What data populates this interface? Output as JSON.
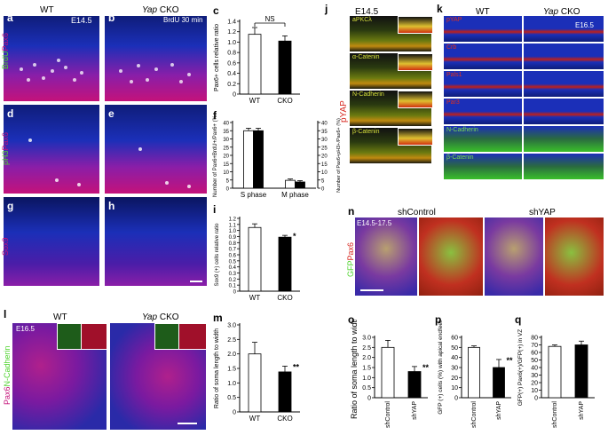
{
  "panels": {
    "a": {
      "letter": "a",
      "stage": "E14.5"
    },
    "b": {
      "letter": "b",
      "label": "BrdU 30 min"
    },
    "c": {
      "letter": "c",
      "ns": "NS"
    },
    "d": {
      "letter": "d"
    },
    "e": {
      "letter": "e"
    },
    "f": {
      "letter": "f"
    },
    "g": {
      "letter": "g"
    },
    "h": {
      "letter": "h"
    },
    "i": {
      "letter": "i",
      "sig": "*"
    },
    "j": {
      "letter": "j",
      "stage": "E14.5",
      "stains": [
        "aPKCλ",
        "α-Catenin",
        "N-Cadherin",
        "β-Catenin"
      ],
      "side_label": "pYAP"
    },
    "k": {
      "letter": "k",
      "stage": "E16.5",
      "stains": [
        "pYAP",
        "Crb",
        "Pals1",
        "Par3",
        "N-Cadherin",
        "β-Catenin"
      ]
    },
    "l": {
      "letter": "l",
      "stage": "E16.5"
    },
    "m": {
      "letter": "m",
      "sig": "**"
    },
    "n": {
      "letter": "n",
      "stage": "E14.5-17.5"
    },
    "o": {
      "letter": "o",
      "sig": "**"
    },
    "p": {
      "letter": "p",
      "sig": "**"
    },
    "q": {
      "letter": "q"
    }
  },
  "headers": {
    "wt": "WT",
    "yap": "Yap",
    "cko": " CKO",
    "shcontrol": "shControl",
    "shyap": "shYAP"
  },
  "row_labels": {
    "abc_a": "BrdU",
    "abc_b": "Pax6",
    "de_a": "pH3",
    "de_b": "Pax6",
    "gh": "Sox9",
    "l_a": "Pax6",
    "l_b": "N-Cadherin",
    "n_a": "GFP",
    "n_b": "Pax6"
  },
  "colors": {
    "dapi": "#1b2fb8",
    "pax6": "#c4127a",
    "green": "#4fd32e",
    "red": "#d7261e",
    "accent_pink": "#ff2ba0"
  },
  "chart_data": [
    {
      "id": "c",
      "type": "bar",
      "ylabel": "Pax6+ cells relative ratio",
      "categories": [
        "WT",
        "CKO"
      ],
      "values": [
        1.15,
        1.02
      ],
      "errors": [
        0.13,
        0.1
      ],
      "ylim": [
        0,
        1.4
      ],
      "yticks": [
        "0",
        "0.2",
        "0.4",
        "0.6",
        "0.8",
        "1.0",
        "1.2",
        "1.4"
      ],
      "annotation": "NS"
    },
    {
      "id": "f",
      "type": "bar",
      "ylabel": "Number of Pax6+BrdU+/Pax6+ (%)",
      "ylabel2": "Number of Pax6+pH3+/Pax6+ (%)",
      "categories": [
        "S phase",
        "M phase"
      ],
      "series": [
        {
          "values": [
            35,
            4.8
          ],
          "errors": [
            1.5,
            0.8
          ]
        },
        {
          "values": [
            35,
            3.8
          ],
          "errors": [
            1.5,
            0.8
          ]
        }
      ],
      "ylim": [
        0,
        40
      ],
      "yticks": [
        "0",
        "5",
        "10",
        "15",
        "20",
        "25",
        "30",
        "35",
        "40"
      ]
    },
    {
      "id": "i",
      "type": "bar",
      "ylabel": "Sox9 (+) cells relative ratio",
      "categories": [
        "WT",
        "CKO"
      ],
      "values": [
        1.05,
        0.89
      ],
      "errors": [
        0.06,
        0.03
      ],
      "ylim": [
        0,
        1.2
      ],
      "yticks": [
        "0",
        "0.1",
        "0.2",
        "0.3",
        "0.4",
        "0.5",
        "0.6",
        "0.7",
        "0.8",
        "0.9",
        "1.0",
        "1.1",
        "1.2"
      ],
      "annotation": "*"
    },
    {
      "id": "m",
      "type": "bar",
      "ylabel": "Ratio of soma length to width",
      "categories": [
        "WT",
        "CKO"
      ],
      "values": [
        2.0,
        1.38
      ],
      "errors": [
        0.4,
        0.2
      ],
      "ylim": [
        0,
        3.0
      ],
      "yticks": [
        "0",
        "0.5",
        "1.0",
        "1.5",
        "2.0",
        "2.5",
        "3.0"
      ],
      "annotation": "**"
    },
    {
      "id": "o",
      "type": "bar",
      "ylabel": "Ratio of soma length to width",
      "categories": [
        "shControl",
        "shYAP"
      ],
      "values": [
        2.5,
        1.3
      ],
      "errors": [
        0.35,
        0.25
      ],
      "ylim": [
        0,
        3.0
      ],
      "yticks": [
        "0",
        "0.5",
        "1.0",
        "1.5",
        "2.0",
        "2.5",
        "3.0"
      ],
      "annotation": "**"
    },
    {
      "id": "p",
      "type": "bar",
      "ylabel": "GFP (+) cells (%) with apical endfeet",
      "categories": [
        "shControl",
        "shYAP"
      ],
      "values": [
        50,
        30
      ],
      "errors": [
        1.5,
        8
      ],
      "ylim": [
        0,
        60
      ],
      "yticks": [
        "0",
        "10",
        "20",
        "30",
        "40",
        "50",
        "60"
      ],
      "annotation": "**"
    },
    {
      "id": "q",
      "type": "bar",
      "ylabel": "GFP(+) Pax6(+)/GFP(+) in VZ",
      "categories": [
        "shControl",
        "shYAP"
      ],
      "values": [
        68,
        70
      ],
      "errors": [
        2,
        5
      ],
      "ylim": [
        0,
        80
      ],
      "yticks": [
        "0",
        "10",
        "20",
        "30",
        "40",
        "50",
        "60",
        "70",
        "80"
      ]
    }
  ]
}
